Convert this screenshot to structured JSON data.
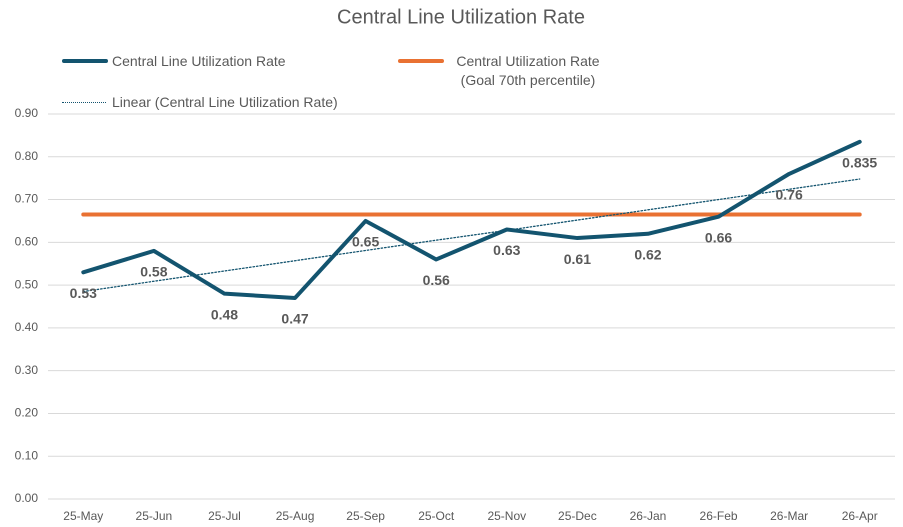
{
  "chart_data": {
    "type": "line",
    "title": "Central Line Utilization Rate",
    "categories": [
      "25-May",
      "25-Jun",
      "25-Jul",
      "25-Aug",
      "25-Sep",
      "25-Oct",
      "25-Nov",
      "25-Dec",
      "26-Jan",
      "26-Feb",
      "26-Mar",
      "26-Apr"
    ],
    "series": [
      {
        "name": "Central Line Utilization Rate",
        "color": "#13546f",
        "style": "solid",
        "values": [
          0.53,
          0.58,
          0.48,
          0.47,
          0.65,
          0.56,
          0.63,
          0.61,
          0.62,
          0.66,
          0.76,
          0.835
        ],
        "data_labels": true
      },
      {
        "name": "Central Utilization Rate (Goal 70th percentile)",
        "color": "#e97132",
        "style": "solid",
        "values": [
          0.665,
          0.665,
          0.665,
          0.665,
          0.665,
          0.665,
          0.665,
          0.665,
          0.665,
          0.665,
          0.665,
          0.665
        ]
      },
      {
        "name": "Linear (Central Line Utilization Rate)",
        "color": "#13546f",
        "style": "dotted",
        "values": [
          0.485,
          0.509,
          0.533,
          0.557,
          0.581,
          0.605,
          0.628,
          0.652,
          0.676,
          0.7,
          0.724,
          0.748
        ]
      }
    ],
    "ylim": [
      0,
      0.9
    ],
    "yticks": [
      {
        "value": 0,
        "label": "0.00"
      },
      {
        "value": 0.1,
        "label": "0.10"
      },
      {
        "value": 0.2,
        "label": "0.20"
      },
      {
        "value": 0.3,
        "label": "0.30"
      },
      {
        "value": 0.4,
        "label": "0.40"
      },
      {
        "value": 0.5,
        "label": "0.50"
      },
      {
        "value": 0.6,
        "label": "0.60"
      },
      {
        "value": 0.7,
        "label": "0.70"
      },
      {
        "value": 0.8,
        "label": "0.80"
      },
      {
        "value": 0.9,
        "label": "0.90"
      }
    ],
    "grid": true
  }
}
